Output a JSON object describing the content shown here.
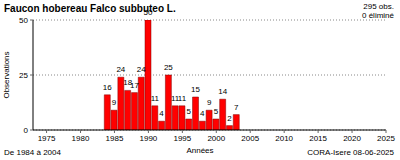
{
  "chart_data": {
    "type": "bar",
    "title": "Faucon hobereau  Falco subbuteo L.",
    "annotations": [
      "295 obs.",
      "0 éliminé",
      "De 1984 à 2004",
      "CORA-Isere 08-06-2025"
    ],
    "x_label": "Années",
    "y_label": "Observations",
    "x": [
      1984,
      1985,
      1986,
      1987,
      1988,
      1989,
      1990,
      1991,
      1992,
      1993,
      1994,
      1995,
      1996,
      1997,
      1998,
      1999,
      2000,
      2001,
      2002,
      2003
    ],
    "values": [
      16,
      9,
      24,
      18,
      17,
      24,
      50,
      11,
      4,
      25,
      11,
      11,
      5,
      15,
      4,
      9,
      5,
      14,
      2,
      7
    ],
    "color": "#ff0000",
    "xlim": [
      1973,
      2025
    ],
    "xticks": [
      1975,
      1980,
      1985,
      1990,
      1995,
      2000,
      2005,
      2010,
      2015,
      2020,
      2025
    ],
    "ylim": [
      0,
      50
    ],
    "yticks": [
      0,
      25,
      50
    ],
    "grid": true,
    "data_labels": true
  }
}
